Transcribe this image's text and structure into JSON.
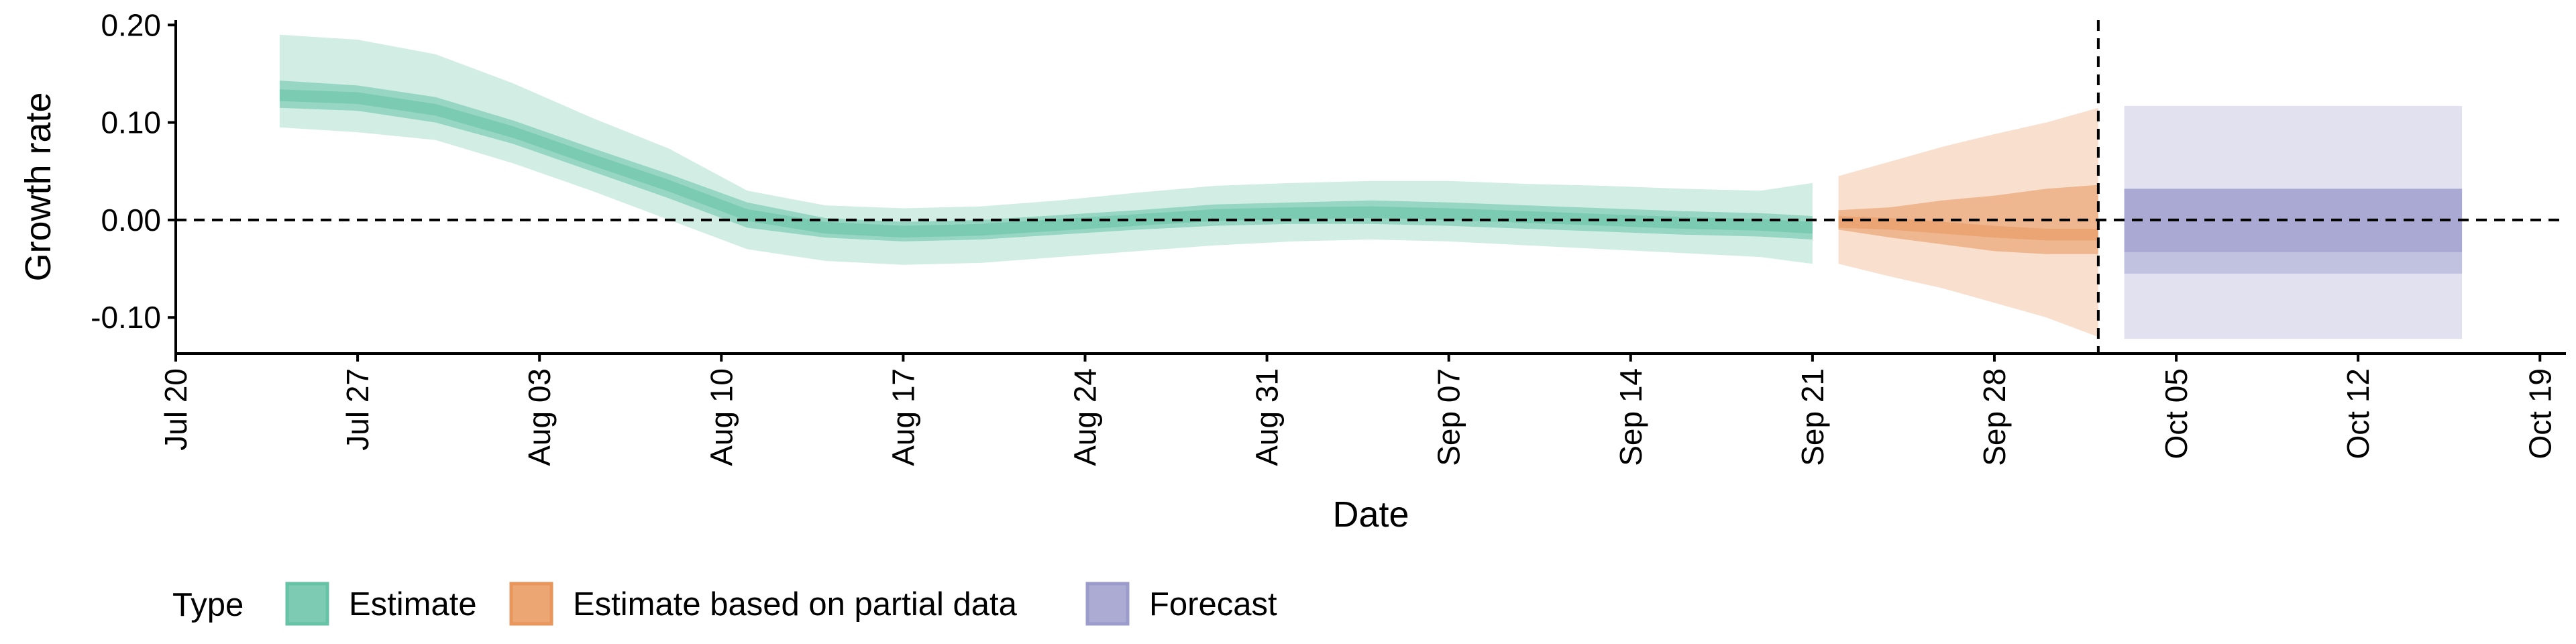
{
  "chart_data": {
    "type": "area",
    "xlabel": "Date",
    "ylabel": "Growth rate",
    "ylim": [
      -0.137,
      0.205
    ],
    "x_range": [
      "2020-07-20",
      "2020-10-20"
    ],
    "x_tick_dates": [
      "2020-07-20",
      "2020-07-27",
      "2020-08-03",
      "2020-08-10",
      "2020-08-17",
      "2020-08-24",
      "2020-08-31",
      "2020-09-07",
      "2020-09-14",
      "2020-09-21",
      "2020-09-28",
      "2020-10-05",
      "2020-10-12",
      "2020-10-19"
    ],
    "x_tick_labels": [
      "Jul 20",
      "Jul 27",
      "Aug 03",
      "Aug 10",
      "Aug 17",
      "Aug 24",
      "Aug 31",
      "Sep 07",
      "Sep 14",
      "Sep 21",
      "Sep 28",
      "Oct 05",
      "Oct 12",
      "Oct 19"
    ],
    "y_ticks": [
      -0.1,
      0.0,
      0.1,
      0.2
    ],
    "y_tick_labels": [
      "-0.10",
      "0.00",
      "0.10",
      "0.20"
    ],
    "grid": false,
    "reference_lines": {
      "horizontal_y": 0.0,
      "vertical_date": "2020-10-02"
    },
    "legend": {
      "title": "Type",
      "position": "bottom-left",
      "items": [
        "Estimate",
        "Estimate based on partial data",
        "Forecast"
      ]
    },
    "colors": {
      "Estimate": "#66c2a5",
      "Estimate based on partial data": "#e8965c",
      "Forecast": "#9c9ccc"
    },
    "series": [
      {
        "name": "Estimate",
        "x": [
          "2020-07-24",
          "2020-07-27",
          "2020-07-30",
          "2020-08-02",
          "2020-08-05",
          "2020-08-08",
          "2020-08-11",
          "2020-08-14",
          "2020-08-17",
          "2020-08-20",
          "2020-08-23",
          "2020-08-26",
          "2020-08-29",
          "2020-09-01",
          "2020-09-04",
          "2020-09-07",
          "2020-09-10",
          "2020-09-13",
          "2020-09-16",
          "2020-09-19",
          "2020-09-21"
        ],
        "median": [
          0.128,
          0.125,
          0.113,
          0.09,
          0.062,
          0.035,
          0.005,
          -0.008,
          -0.012,
          -0.01,
          -0.005,
          0.0,
          0.005,
          0.007,
          0.008,
          0.006,
          0.003,
          0.0,
          -0.003,
          -0.005,
          -0.008
        ],
        "lower_50": [
          0.115,
          0.112,
          0.1,
          0.078,
          0.05,
          0.022,
          -0.008,
          -0.018,
          -0.022,
          -0.02,
          -0.015,
          -0.01,
          -0.006,
          -0.004,
          -0.004,
          -0.006,
          -0.009,
          -0.012,
          -0.015,
          -0.017,
          -0.02
        ],
        "upper_50": [
          0.143,
          0.138,
          0.126,
          0.102,
          0.074,
          0.047,
          0.018,
          0.002,
          -0.002,
          0.0,
          0.005,
          0.01,
          0.016,
          0.018,
          0.02,
          0.018,
          0.015,
          0.012,
          0.009,
          0.007,
          0.004
        ],
        "lower_90": [
          0.095,
          0.09,
          0.082,
          0.058,
          0.03,
          0.0,
          -0.03,
          -0.042,
          -0.046,
          -0.044,
          -0.038,
          -0.032,
          -0.026,
          -0.022,
          -0.02,
          -0.022,
          -0.026,
          -0.03,
          -0.034,
          -0.038,
          -0.045
        ],
        "upper_90": [
          0.19,
          0.185,
          0.17,
          0.14,
          0.105,
          0.073,
          0.03,
          0.015,
          0.012,
          0.014,
          0.02,
          0.028,
          0.035,
          0.038,
          0.04,
          0.04,
          0.037,
          0.035,
          0.032,
          0.03,
          0.038
        ]
      },
      {
        "name": "Estimate based on partial data",
        "x": [
          "2020-09-22",
          "2020-09-24",
          "2020-09-26",
          "2020-09-28",
          "2020-09-30",
          "2020-10-02"
        ],
        "median": [
          -0.002,
          -0.004,
          -0.008,
          -0.012,
          -0.015,
          -0.015
        ],
        "lower_50": [
          -0.01,
          -0.018,
          -0.025,
          -0.032,
          -0.035,
          -0.035
        ],
        "upper_50": [
          0.01,
          0.013,
          0.02,
          0.025,
          0.032,
          0.036
        ],
        "lower_90": [
          -0.045,
          -0.058,
          -0.07,
          -0.085,
          -0.1,
          -0.12
        ],
        "upper_90": [
          0.045,
          0.06,
          0.075,
          0.088,
          0.1,
          0.115
        ]
      },
      {
        "name": "Forecast",
        "x": [
          "2020-10-03",
          "2020-10-16"
        ],
        "median": [
          0.0,
          0.0
        ],
        "lower_50": [
          -0.033,
          -0.033
        ],
        "upper_50": [
          0.032,
          0.032
        ],
        "lower_75": [
          -0.055,
          -0.055
        ],
        "upper_75": [
          0.032,
          0.032
        ],
        "lower_90": [
          -0.122,
          -0.122
        ],
        "upper_90": [
          0.117,
          0.117
        ]
      }
    ]
  }
}
